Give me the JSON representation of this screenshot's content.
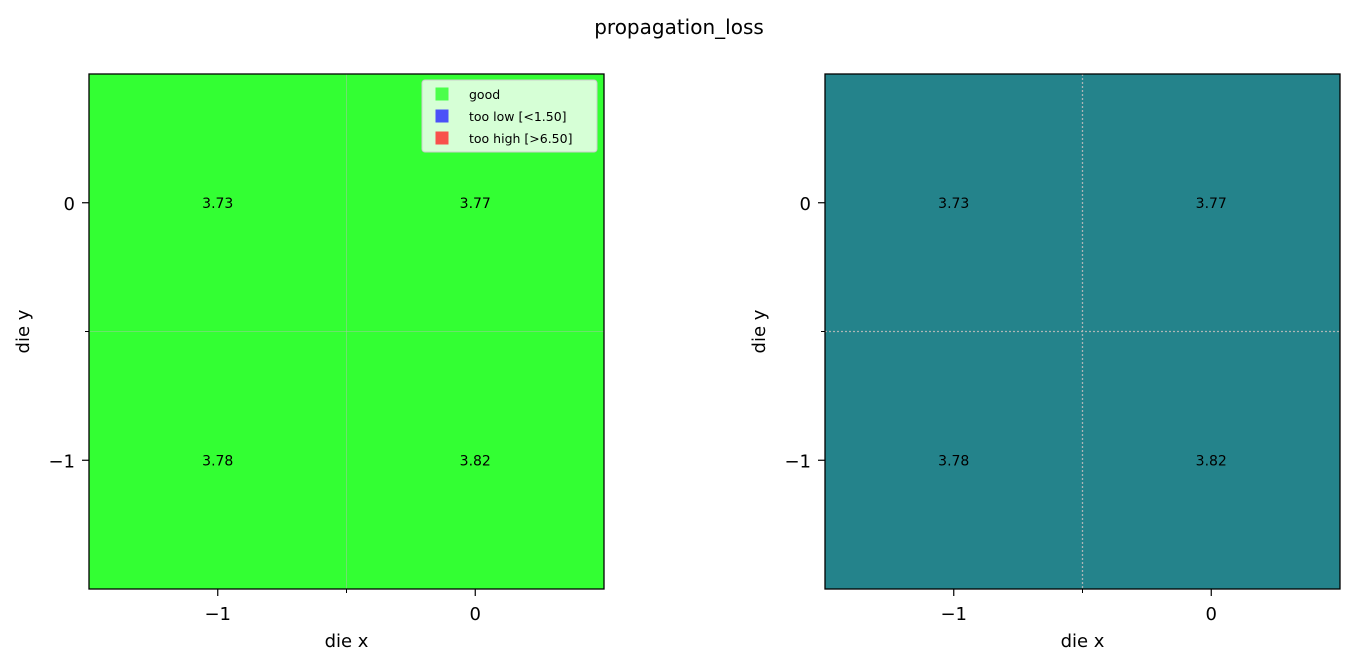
{
  "figure": {
    "title": "propagation_loss"
  },
  "chart_data": [
    {
      "type": "heatmap",
      "panel": "classified",
      "xlabel": "die x",
      "ylabel": "die y",
      "x": [
        -1,
        0
      ],
      "y": [
        0,
        -1
      ],
      "xlim": [
        -1.5,
        0.5
      ],
      "ylim": [
        -1.5,
        0.5
      ],
      "xticks": [
        -1,
        0
      ],
      "xtick_labels": [
        "−1",
        "0"
      ],
      "yticks": [
        0,
        -1
      ],
      "ytick_labels": [
        "0",
        "−1"
      ],
      "cells": [
        {
          "x": -1,
          "y": 0,
          "value": 3.73,
          "label": "3.73",
          "status": "good"
        },
        {
          "x": 0,
          "y": 0,
          "value": 3.77,
          "label": "3.77",
          "status": "good"
        },
        {
          "x": -1,
          "y": -1,
          "value": 3.78,
          "label": "3.78",
          "status": "good"
        },
        {
          "x": 0,
          "y": -1,
          "value": 3.82,
          "label": "3.82",
          "status": "good"
        }
      ],
      "status_colors": {
        "good": "#33ff33",
        "too_low": "#3333ff",
        "too_high": "#ff3333"
      },
      "grid": true,
      "grid_color": "#bbbbbb",
      "legend": {
        "placement": "upper-right",
        "entries": [
          {
            "label": "good",
            "color": "#33ff33"
          },
          {
            "label": "too low [<1.50]",
            "color": "#3333ff"
          },
          {
            "label": "too high [>6.50]",
            "color": "#ff3333"
          }
        ]
      }
    },
    {
      "type": "heatmap",
      "panel": "values",
      "xlabel": "die x",
      "ylabel": "die y",
      "x": [
        -1,
        0
      ],
      "y": [
        0,
        -1
      ],
      "xlim": [
        -1.5,
        0.5
      ],
      "ylim": [
        -1.5,
        0.5
      ],
      "xticks": [
        -1,
        0
      ],
      "xtick_labels": [
        "−1",
        "0"
      ],
      "yticks": [
        0,
        -1
      ],
      "ytick_labels": [
        "0",
        "−1"
      ],
      "cells": [
        {
          "x": -1,
          "y": 0,
          "value": 3.73,
          "label": "3.73",
          "color": "#24838b"
        },
        {
          "x": 0,
          "y": 0,
          "value": 3.77,
          "label": "3.77",
          "color": "#24838b"
        },
        {
          "x": -1,
          "y": -1,
          "value": 3.78,
          "label": "3.78",
          "color": "#24838b"
        },
        {
          "x": 0,
          "y": -1,
          "value": 3.82,
          "label": "3.82",
          "color": "#24838b"
        }
      ],
      "grid": true,
      "grid_color": "#bbbbbb"
    }
  ]
}
